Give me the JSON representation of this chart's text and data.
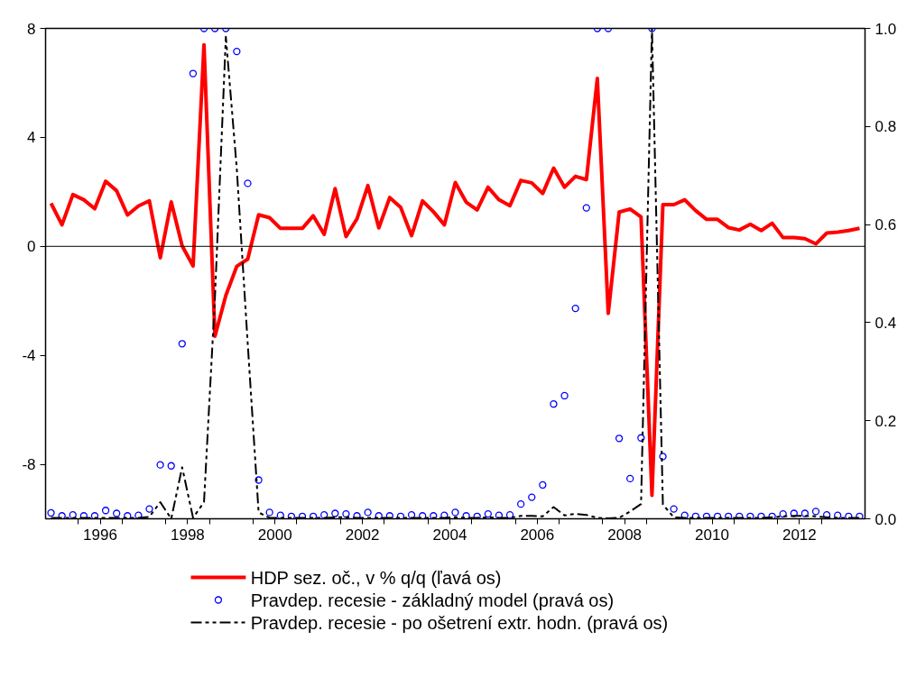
{
  "chart_data": {
    "type": "line",
    "x": [
      1995.375,
      1995.625,
      1995.875,
      1996.125,
      1996.375,
      1996.625,
      1996.875,
      1997.125,
      1997.375,
      1997.625,
      1997.875,
      1998.125,
      1998.375,
      1998.625,
      1998.875,
      1999.125,
      1999.375,
      1999.625,
      1999.875,
      2000.125,
      2000.375,
      2000.625,
      2000.875,
      2001.125,
      2001.375,
      2001.625,
      2001.875,
      2002.125,
      2002.375,
      2002.625,
      2002.875,
      2003.125,
      2003.375,
      2003.625,
      2003.875,
      2004.125,
      2004.375,
      2004.625,
      2004.875,
      2005.125,
      2005.375,
      2005.625,
      2005.875,
      2006.125,
      2006.375,
      2006.625,
      2006.875,
      2007.125,
      2007.375,
      2007.625,
      2007.875,
      2008.125,
      2008.375,
      2008.625,
      2008.875,
      2009.125,
      2009.375,
      2009.625,
      2009.875,
      2010.125,
      2010.375,
      2010.625,
      2010.875,
      2011.125,
      2011.375,
      2011.625,
      2011.875,
      2012.125,
      2012.375,
      2012.625,
      2012.875,
      2013.125,
      2013.375,
      2013.625,
      2013.875
    ],
    "series": [
      {
        "name": "HDP sez. oč., v % q/q (ľavá os)",
        "color": "#ff0000",
        "line_style": "solid",
        "marker": "none",
        "values": [
          1.58,
          0.79,
          1.9,
          1.71,
          1.38,
          2.39,
          2.04,
          1.15,
          1.48,
          1.67,
          -0.42,
          1.63,
          0.02,
          -0.72,
          7.4,
          -3.3,
          -1.8,
          -0.73,
          -0.47,
          1.16,
          1.05,
          0.66,
          0.66,
          0.66,
          1.12,
          0.44,
          2.12,
          0.36,
          1.01,
          2.23,
          0.68,
          1.79,
          1.43,
          0.39,
          1.67,
          1.27,
          0.79,
          2.34,
          1.62,
          1.34,
          2.17,
          1.71,
          1.49,
          2.42,
          2.33,
          1.94,
          2.87,
          2.17,
          2.57,
          2.45,
          6.16,
          -2.46,
          1.26,
          1.37,
          1.08,
          -9.14,
          1.53,
          1.53,
          1.71,
          1.31,
          0.99,
          0.99,
          0.69,
          0.6,
          0.81,
          0.58,
          0.85,
          0.32,
          0.32,
          0.28,
          0.09,
          0.49,
          0.52,
          0.58,
          0.66
        ]
      },
      {
        "name": "Pravdep. recesie - základný model (pravá os)",
        "type": "scatter",
        "axis": "y2",
        "color": "#0000ff",
        "marker": "circle",
        "values": [
          0.012,
          0.006,
          0.008,
          0.006,
          0.006,
          0.017,
          0.011,
          0.006,
          0.007,
          0.02,
          0.11,
          0.108,
          0.357,
          0.908,
          1.0,
          1.0,
          1.0,
          0.953,
          0.684,
          0.079,
          0.013,
          0.007,
          0.005,
          0.005,
          0.005,
          0.008,
          0.011,
          0.01,
          0.006,
          0.013,
          0.006,
          0.006,
          0.005,
          0.008,
          0.006,
          0.006,
          0.007,
          0.013,
          0.006,
          0.005,
          0.01,
          0.007,
          0.008,
          0.03,
          0.044,
          0.069,
          0.234,
          0.251,
          0.429,
          0.634,
          1.0,
          1.0,
          0.164,
          0.082,
          0.165,
          1.0,
          0.127,
          0.02,
          0.007,
          0.005,
          0.005,
          0.005,
          0.005,
          0.005,
          0.005,
          0.005,
          0.005,
          0.01,
          0.011,
          0.011,
          0.015,
          0.008,
          0.007,
          0.005,
          0.005
        ]
      },
      {
        "name": "Pravdep. recesie - po ošetrení extr. hodn. (pravá os)",
        "type": "line",
        "axis": "y2",
        "color": "#000000",
        "line_style": "dashed",
        "marker": "none",
        "values": [
          0.002,
          0.002,
          0.002,
          0.002,
          0.002,
          0.002,
          0.002,
          0.002,
          0.002,
          0.004,
          0.034,
          0.0,
          0.105,
          0.002,
          0.034,
          0.45,
          0.983,
          0.714,
          0.358,
          0.013,
          0.002,
          0.002,
          0.002,
          0.002,
          0.002,
          0.002,
          0.003,
          0.003,
          0.002,
          0.002,
          0.002,
          0.002,
          0.002,
          0.002,
          0.002,
          0.002,
          0.002,
          0.003,
          0.002,
          0.002,
          0.003,
          0.002,
          0.002,
          0.006,
          0.006,
          0.005,
          0.024,
          0.007,
          0.01,
          0.008,
          0.002,
          0.001,
          0.002,
          0.015,
          0.03,
          1.0,
          0.029,
          0.003,
          0.002,
          0.002,
          0.002,
          0.002,
          0.002,
          0.002,
          0.002,
          0.002,
          0.003,
          0.005,
          0.006,
          0.006,
          0.005,
          0.003,
          0.002,
          0.002,
          0.002
        ]
      }
    ],
    "xlim": [
      1995.25,
      2014.0
    ],
    "xticks": [
      {
        "value": 1996,
        "label": null
      },
      {
        "value": 1996.5,
        "label": "1996"
      },
      {
        "value": 1997,
        "label": null
      },
      {
        "value": 1998,
        "label": null
      },
      {
        "value": 1998.5,
        "label": "1998"
      },
      {
        "value": 1999,
        "label": null
      },
      {
        "value": 2000,
        "label": null
      },
      {
        "value": 2000.5,
        "label": "2000"
      },
      {
        "value": 2001,
        "label": null
      },
      {
        "value": 2002,
        "label": null
      },
      {
        "value": 2002.5,
        "label": "2002"
      },
      {
        "value": 2003,
        "label": null
      },
      {
        "value": 2004,
        "label": null
      },
      {
        "value": 2004.5,
        "label": "2004"
      },
      {
        "value": 2005,
        "label": null
      },
      {
        "value": 2006,
        "label": null
      },
      {
        "value": 2006.5,
        "label": "2006"
      },
      {
        "value": 2007,
        "label": null
      },
      {
        "value": 2008,
        "label": null
      },
      {
        "value": 2008.5,
        "label": "2008"
      },
      {
        "value": 2009,
        "label": null
      },
      {
        "value": 2010,
        "label": null
      },
      {
        "value": 2010.5,
        "label": "2010"
      },
      {
        "value": 2011,
        "label": null
      },
      {
        "value": 2012,
        "label": null
      },
      {
        "value": 2012.5,
        "label": "2012"
      },
      {
        "value": 2013,
        "label": null
      }
    ],
    "ylim": [
      -10,
      8
    ],
    "yticks": [
      -8,
      -4,
      0,
      4,
      8
    ],
    "y2lim": [
      0,
      1
    ],
    "y2ticks": [
      {
        "value": 0,
        "label": "0.0"
      },
      {
        "value": 0.2,
        "label": "0.2"
      },
      {
        "value": 0.4,
        "label": "0.4"
      },
      {
        "value": 0.6,
        "label": "0.6"
      },
      {
        "value": 0.8,
        "label": "0.8"
      },
      {
        "value": 1,
        "label": "1.0"
      }
    ],
    "ref_lines": [
      {
        "axis": "y",
        "value": 0,
        "label": null,
        "color": "#000000"
      }
    ],
    "grid": false,
    "legend": "bottom"
  }
}
